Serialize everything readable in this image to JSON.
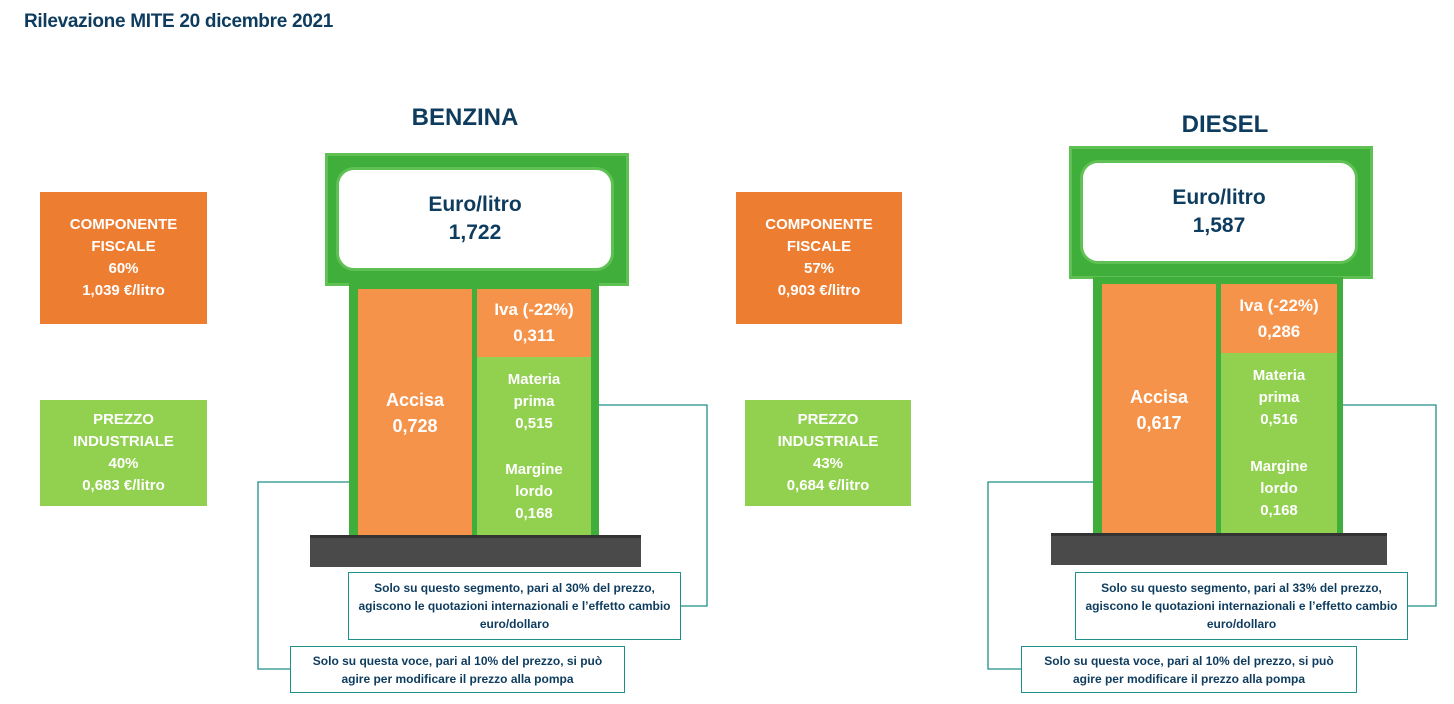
{
  "title": "Rilevazione MITE 20 dicembre 2021",
  "benzina": {
    "name": "BENZINA",
    "screen": {
      "unit": "Euro/litro",
      "price": "1,722"
    },
    "fiscale": {
      "line1": "COMPONENTE",
      "line2": "FISCALE",
      "pct": "60%",
      "value": "1,039 €/litro"
    },
    "industriale": {
      "line1": "PREZZO",
      "line2": "INDUSTRIALE",
      "pct": "40%",
      "value": "0,683 €/litro"
    },
    "accisa": {
      "label": "Accisa",
      "value": "0,728"
    },
    "iva": {
      "label": "Iva (-22%)",
      "value": "0,311"
    },
    "materia": {
      "line1": "Materia",
      "line2": "prima",
      "value": "0,515"
    },
    "margine": {
      "line1": "Margine",
      "line2": "lordo",
      "value": "0,168"
    },
    "note_materia": {
      "line1": "Solo su questo segmento, pari al 30% del prezzo,",
      "line2": "agiscono le quotazioni internazionali e l’effetto cambio",
      "line3": "euro/dollaro"
    },
    "note_margine": {
      "line1": "Solo su questa voce, pari al 10% del prezzo, si può",
      "line2": "agire per modificare il prezzo alla pompa"
    }
  },
  "diesel": {
    "name": "DIESEL",
    "screen": {
      "unit": "Euro/litro",
      "price": "1,587"
    },
    "fiscale": {
      "line1": "COMPONENTE",
      "line2": "FISCALE",
      "pct": "57%",
      "value": "0,903 €/litro"
    },
    "industriale": {
      "line1": "PREZZO",
      "line2": "INDUSTRIALE",
      "pct": "43%",
      "value": "0,684 €/litro"
    },
    "accisa": {
      "label": "Accisa",
      "value": "0,617"
    },
    "iva": {
      "label": "Iva (-22%)",
      "value": "0,286"
    },
    "materia": {
      "line1": "Materia",
      "line2": "prima",
      "value": "0,516"
    },
    "margine": {
      "line1": "Margine",
      "line2": "lordo",
      "value": "0,168"
    },
    "note_materia": {
      "line1": "Solo su questo segmento, pari al 33% del prezzo,",
      "line2": "agiscono le quotazioni internazionali e l’effetto cambio",
      "line3": "euro/dollaro"
    },
    "note_margine": {
      "line1": "Solo su questa voce, pari al 10% del prezzo, si può",
      "line2": "agire per modificare il prezzo alla pompa"
    }
  },
  "colors": {
    "orange": "#ed7d31",
    "light_orange": "#f6934a",
    "green": "#92d050",
    "pump_green": "#3fae3a",
    "navy": "#0e3c5e",
    "teal_line": "#1f8f8a",
    "base_gray": "#4a4a4a"
  }
}
